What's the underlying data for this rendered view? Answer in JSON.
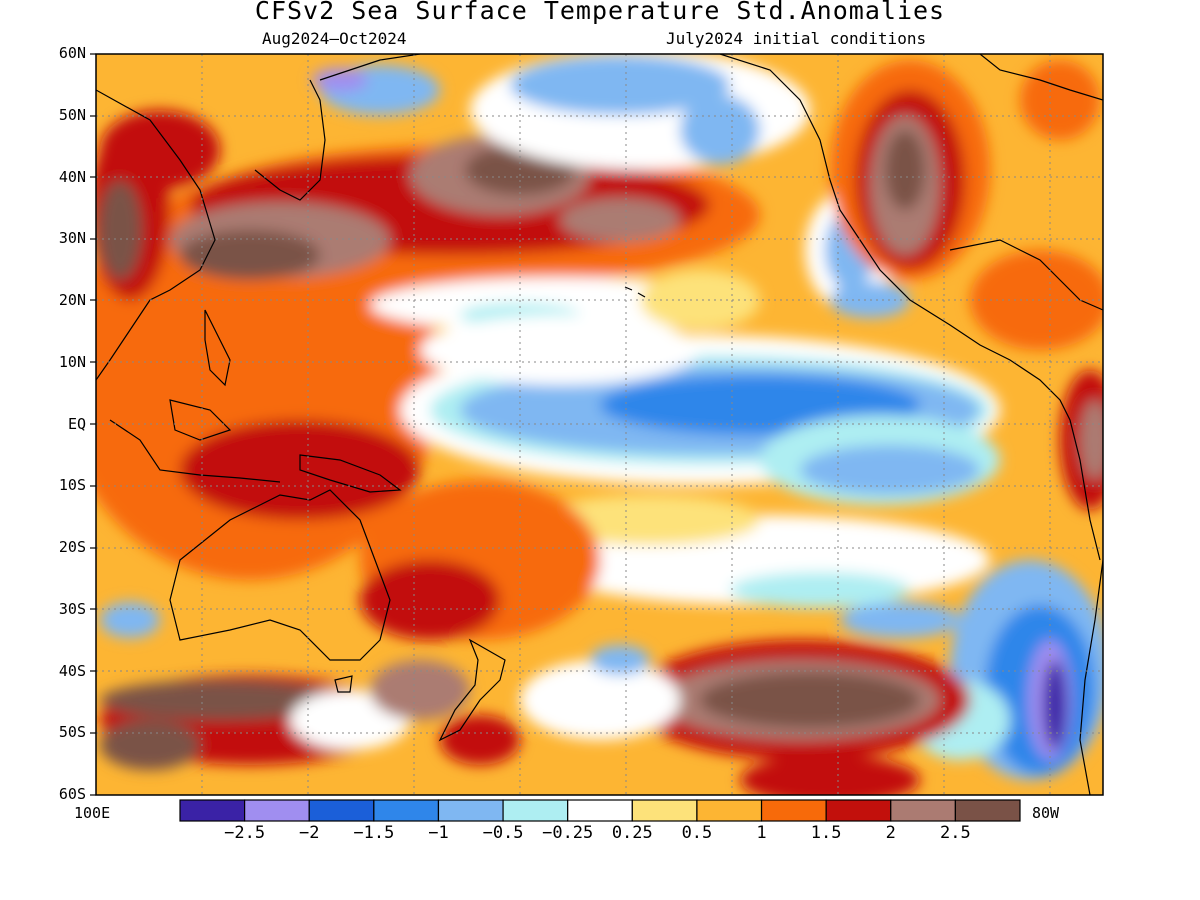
{
  "title": "CFSv2 Sea Surface Temperature Std.Anomalies",
  "subtitle_left": "Aug2024–Oct2024",
  "subtitle_right": "July2024 initial conditions",
  "lat_labels": [
    "60N",
    "50N",
    "40N",
    "30N",
    "20N",
    "10N",
    "EQ",
    "10S",
    "20S",
    "30S",
    "40S",
    "50S",
    "60S"
  ],
  "lon_left": "100E",
  "lon_right": "80W",
  "colorbar": {
    "colors": [
      "#3a22a6",
      "#a08ef0",
      "#1b5fd9",
      "#2f86ea",
      "#7fb7f2",
      "#aeeef2",
      "#ffffff",
      "#fde27a",
      "#fdb533",
      "#f76a0a",
      "#c2100c",
      "#ab7b72",
      "#7a5247"
    ],
    "labels": [
      "−2.5",
      "−2",
      "−1.5",
      "−1",
      "−0.5",
      "−0.25",
      "0.25",
      "0.5",
      "1",
      "1.5",
      "2",
      "2.5"
    ]
  }
}
